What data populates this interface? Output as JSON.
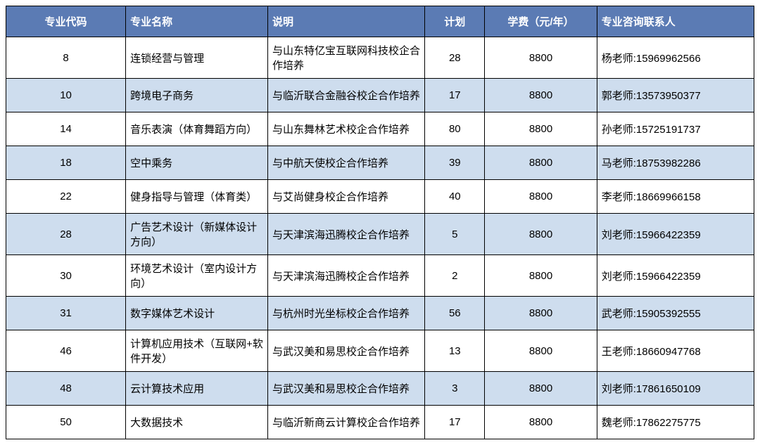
{
  "table": {
    "header_bg": "#5B7BB4",
    "header_fg": "#ffffff",
    "row_even_bg": "#CEDDEE",
    "row_odd_bg": "#ffffff",
    "border_color": "#000000",
    "font_size": 15,
    "columns": [
      {
        "key": "code",
        "label": "专业代码",
        "width_pct": 16,
        "align": "center"
      },
      {
        "key": "name",
        "label": "专业名称",
        "width_pct": 19,
        "align": "left"
      },
      {
        "key": "desc",
        "label": "说明",
        "width_pct": 21,
        "align": "left"
      },
      {
        "key": "plan",
        "label": "计划",
        "width_pct": 8,
        "align": "center"
      },
      {
        "key": "fee",
        "label": "学费（元/年）",
        "width_pct": 15,
        "align": "center"
      },
      {
        "key": "contact",
        "label": "专业咨询联系人",
        "width_pct": 21,
        "align": "left"
      }
    ],
    "rows": [
      {
        "code": "8",
        "name": "连锁经营与管理",
        "desc": "与山东特亿宝互联网科技校企合作培养",
        "plan": "28",
        "fee": "8800",
        "contact": "杨老师:15969962566"
      },
      {
        "code": "10",
        "name": "跨境电子商务",
        "desc": "与临沂联合金融谷校企合作培养",
        "plan": "17",
        "fee": "8800",
        "contact": "郭老师:13573950377"
      },
      {
        "code": "14",
        "name": "音乐表演（体育舞蹈方向）",
        "desc": "与山东舞林艺术校企合作培养",
        "plan": "80",
        "fee": "8800",
        "contact": "孙老师:15725191737"
      },
      {
        "code": "18",
        "name": "空中乘务",
        "desc": "与中航天使校企合作培养",
        "plan": "39",
        "fee": "8800",
        "contact": "马老师:18753982286"
      },
      {
        "code": "22",
        "name": "健身指导与管理（体育类）",
        "desc": "与艾尚健身校企合作培养",
        "plan": "40",
        "fee": "8800",
        "contact": "李老师:18669966158"
      },
      {
        "code": "28",
        "name": "广告艺术设计（新媒体设计方向）",
        "desc": "与天津滨海迅腾校企合作培养",
        "plan": "5",
        "fee": "8800",
        "contact": "刘老师:15966422359"
      },
      {
        "code": "30",
        "name": "环境艺术设计（室内设计方向）",
        "desc": "与天津滨海迅腾校企合作培养",
        "plan": "2",
        "fee": "8800",
        "contact": "刘老师:15966422359"
      },
      {
        "code": "31",
        "name": "数字媒体艺术设计",
        "desc": "与杭州时光坐标校企合作培养",
        "plan": "56",
        "fee": "8800",
        "contact": "武老师:15905392555"
      },
      {
        "code": "46",
        "name": "计算机应用技术（互联网+软件开发）",
        "desc": "与武汉美和易思校企合作培养",
        "plan": "13",
        "fee": "8800",
        "contact": "王老师:18660947768"
      },
      {
        "code": "48",
        "name": "云计算技术应用",
        "desc": "与武汉美和易思校企合作培养",
        "plan": "3",
        "fee": "8800",
        "contact": "刘老师:17861650109"
      },
      {
        "code": "50",
        "name": "大数据技术",
        "desc": "与临沂新商云计算校企合作培养",
        "plan": "17",
        "fee": "8800",
        "contact": "魏老师:17862275775"
      }
    ]
  }
}
